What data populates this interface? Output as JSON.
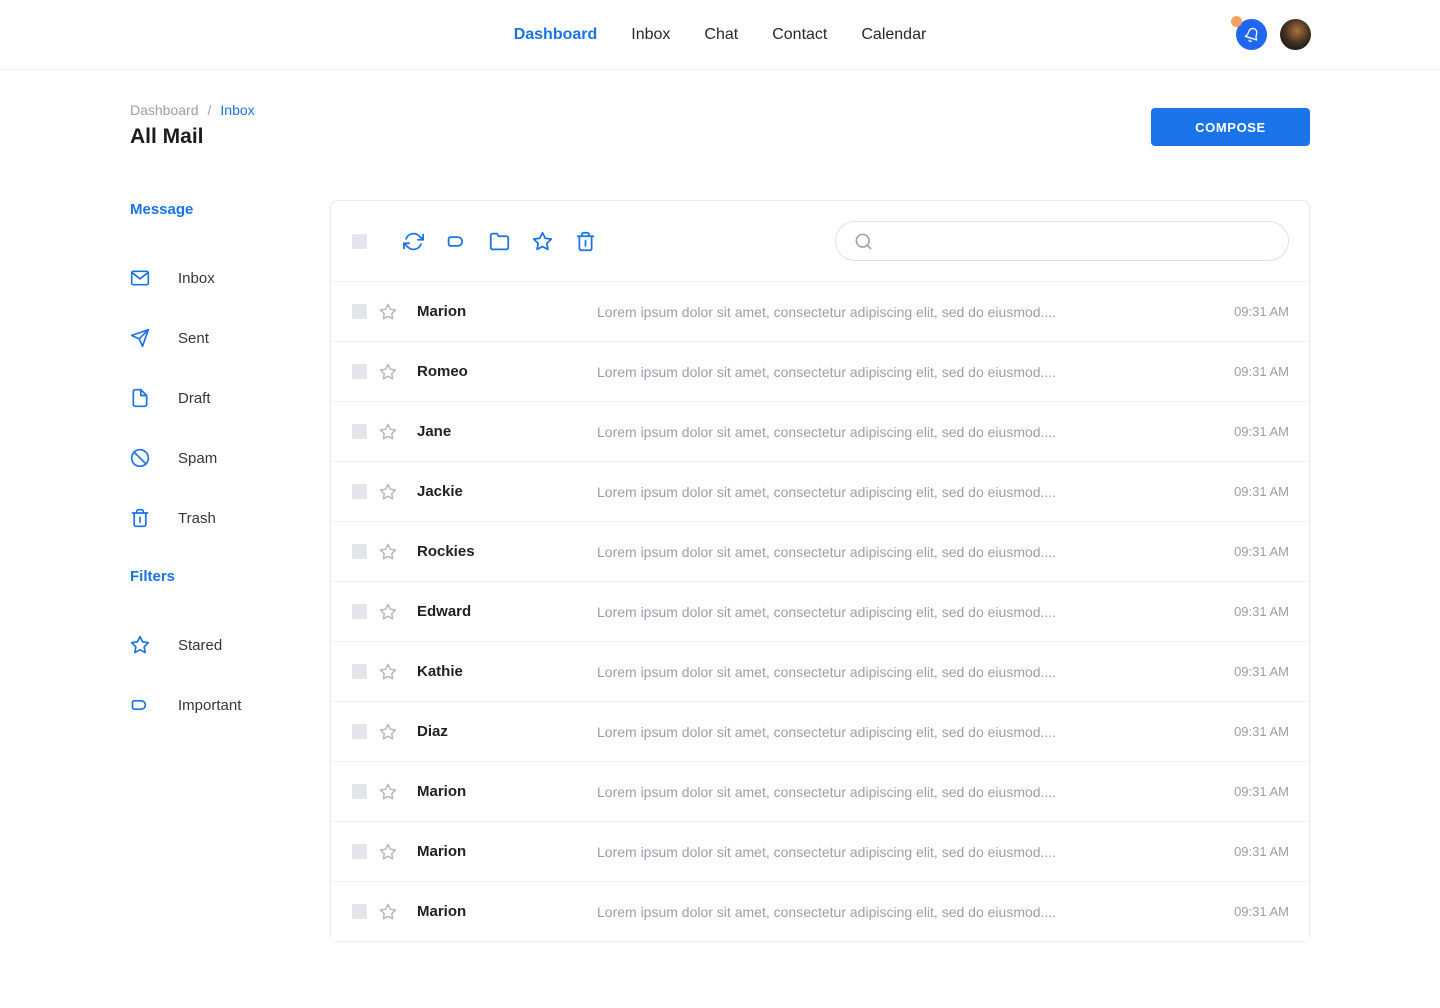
{
  "nav": {
    "items": [
      {
        "label": "Dashboard",
        "active": true
      },
      {
        "label": "Inbox",
        "active": false
      },
      {
        "label": "Chat",
        "active": false
      },
      {
        "label": "Contact",
        "active": false
      },
      {
        "label": "Calendar",
        "active": false
      }
    ]
  },
  "page": {
    "breadcrumb": {
      "parent": "Dashboard",
      "separator": "/",
      "current": "Inbox"
    },
    "title": "All Mail",
    "compose_label": "COMPOSE"
  },
  "sidebar": {
    "sections": [
      {
        "title": "Message",
        "items": [
          {
            "label": "Inbox",
            "icon": "mail-icon"
          },
          {
            "label": "Sent",
            "icon": "send-icon"
          },
          {
            "label": "Draft",
            "icon": "draft-icon"
          },
          {
            "label": "Spam",
            "icon": "spam-icon"
          },
          {
            "label": "Trash",
            "icon": "trash-icon"
          }
        ]
      },
      {
        "title": "Filters",
        "items": [
          {
            "label": "Stared",
            "icon": "star-icon"
          },
          {
            "label": "Important",
            "icon": "label-icon"
          }
        ]
      }
    ]
  },
  "toolbar": {
    "icons": [
      "refresh-icon",
      "label-icon",
      "folder-icon",
      "star-icon",
      "trash-icon"
    ],
    "search": {
      "value": ""
    }
  },
  "mail": {
    "rows": [
      {
        "sender": "Marion",
        "preview": "Lorem ipsum dolor sit amet, consectetur adipiscing elit, sed do eiusmod....",
        "time": "09:31 AM"
      },
      {
        "sender": "Romeo",
        "preview": "Lorem ipsum dolor sit amet, consectetur adipiscing elit, sed do eiusmod....",
        "time": "09:31 AM"
      },
      {
        "sender": "Jane",
        "preview": "Lorem ipsum dolor sit amet, consectetur adipiscing elit, sed do eiusmod....",
        "time": "09:31 AM"
      },
      {
        "sender": "Jackie",
        "preview": "Lorem ipsum dolor sit amet, consectetur adipiscing elit, sed do eiusmod....",
        "time": "09:31 AM"
      },
      {
        "sender": "Rockies",
        "preview": "Lorem ipsum dolor sit amet, consectetur adipiscing elit, sed do eiusmod....",
        "time": "09:31 AM"
      },
      {
        "sender": "Edward",
        "preview": "Lorem ipsum dolor sit amet, consectetur adipiscing elit, sed do eiusmod....",
        "time": "09:31 AM"
      },
      {
        "sender": "Kathie",
        "preview": "Lorem ipsum dolor sit amet, consectetur adipiscing elit, sed do eiusmod....",
        "time": "09:31 AM"
      },
      {
        "sender": "Diaz",
        "preview": "Lorem ipsum dolor sit amet, consectetur adipiscing elit, sed do eiusmod....",
        "time": "09:31 AM"
      },
      {
        "sender": "Marion",
        "preview": "Lorem ipsum dolor sit amet, consectetur adipiscing elit, sed do eiusmod....",
        "time": "09:31 AM"
      },
      {
        "sender": "Marion",
        "preview": "Lorem ipsum dolor sit amet, consectetur adipiscing elit, sed do eiusmod....",
        "time": "09:31 AM"
      },
      {
        "sender": "Marion",
        "preview": "Lorem ipsum dolor sit amet, consectetur adipiscing elit, sed do eiusmod....",
        "time": "09:31 AM"
      }
    ]
  },
  "colors": {
    "accent": "#1a73e8",
    "notification_badge": "#f0a35e",
    "compose_button": "#1a73e8"
  }
}
